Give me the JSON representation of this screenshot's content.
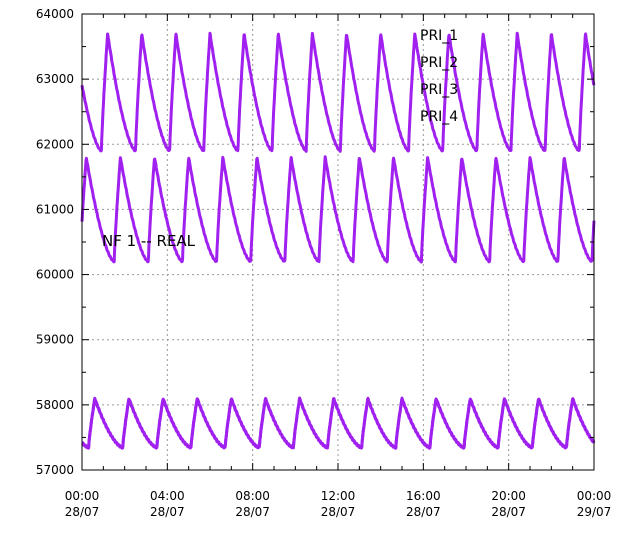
{
  "chart_data": {
    "type": "line",
    "title": "",
    "xlabel": "",
    "ylabel": "",
    "xlim": [
      "28/07 00:00",
      "29/07 00:00"
    ],
    "ylim": [
      57000,
      64000
    ],
    "grid": true,
    "legend_position": "top-right",
    "inner_label": "NF 1 -- REAL",
    "y_ticks": [
      57000,
      58000,
      59000,
      60000,
      61000,
      62000,
      63000,
      64000
    ],
    "x_ticks": [
      {
        "time": "00:00",
        "date": "28/07",
        "hour": 0
      },
      {
        "time": "04:00",
        "date": "28/07",
        "hour": 4
      },
      {
        "time": "08:00",
        "date": "28/07",
        "hour": 8
      },
      {
        "time": "12:00",
        "date": "28/07",
        "hour": 12
      },
      {
        "time": "16:00",
        "date": "28/07",
        "hour": 16
      },
      {
        "time": "20:00",
        "date": "28/07",
        "hour": 20
      },
      {
        "time": "00:00",
        "date": "29/07",
        "hour": 24
      }
    ],
    "series_period_hours": 1.6,
    "series": [
      {
        "name": "PRI_1",
        "color": "#a020f0",
        "min": 61900,
        "max": 63700,
        "peak_offset_hours": 1.2
      },
      {
        "name": "PRI_2",
        "color": "#a020f0",
        "min": 60200,
        "max": 61800,
        "peak_offset_hours": 0.2
      },
      {
        "name": "PRI_3",
        "color": "#a020f0",
        "min": 57350,
        "max": 58100,
        "peak_offset_hours": 0.6
      },
      {
        "name": "PRI_4",
        "color": "#a020f0",
        "min": 57350,
        "max": 58100,
        "peak_offset_hours": 0.6
      }
    ]
  }
}
